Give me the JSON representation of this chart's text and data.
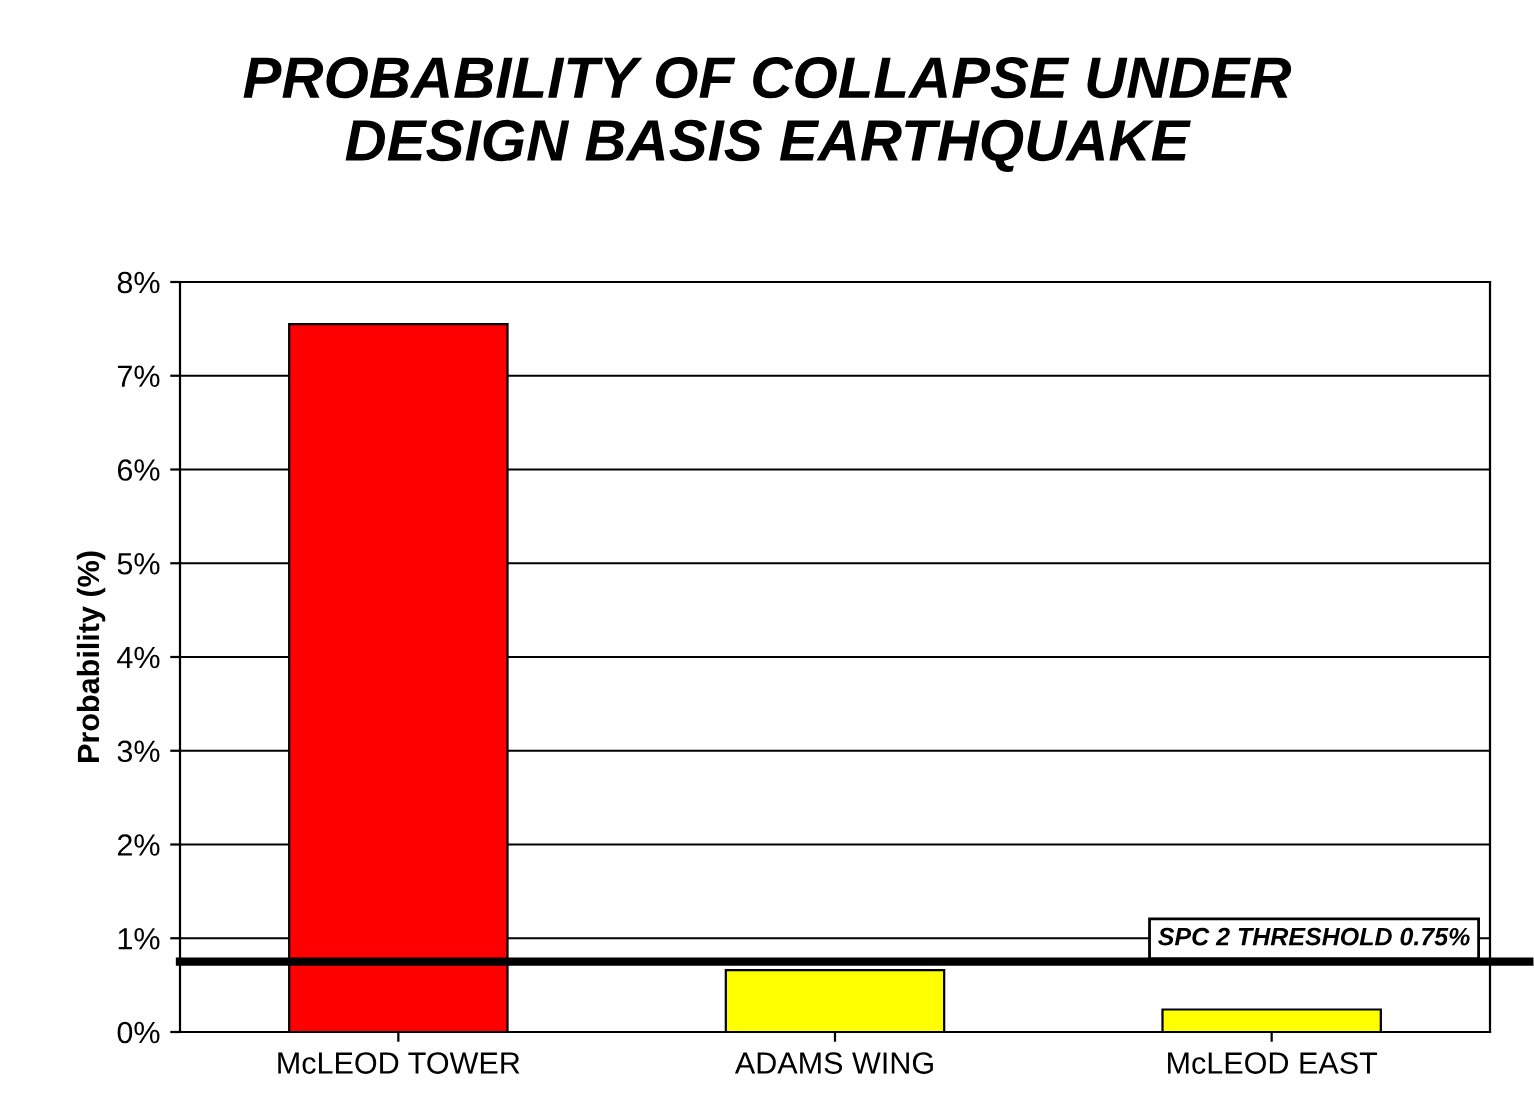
{
  "chart_data": {
    "type": "bar",
    "title": "PROBABILITY OF COLLAPSE UNDER\nDESIGN BASIS EARTHQUAKE",
    "ylabel": "Probability (%)",
    "categories": [
      "McLEOD TOWER",
      "ADAMS WING",
      "McLEOD EAST"
    ],
    "values": [
      7.55,
      0.66,
      0.24
    ],
    "colors": [
      "#ff0000",
      "#ffff00",
      "#ffff00"
    ],
    "ylim": [
      0,
      8
    ],
    "yticks": [
      {
        "value": 0,
        "label": "0%"
      },
      {
        "value": 1,
        "label": "1%"
      },
      {
        "value": 2,
        "label": "2%"
      },
      {
        "value": 3,
        "label": "3%"
      },
      {
        "value": 4,
        "label": "4%"
      },
      {
        "value": 5,
        "label": "5%"
      },
      {
        "value": 6,
        "label": "6%"
      },
      {
        "value": 7,
        "label": "7%"
      },
      {
        "value": 8,
        "label": "8%"
      }
    ],
    "grid": "y",
    "ref_lines": [
      {
        "axis": "y",
        "value": 0.75,
        "label": "SPC 2 THRESHOLD 0.75%",
        "color": "#000000"
      }
    ]
  }
}
